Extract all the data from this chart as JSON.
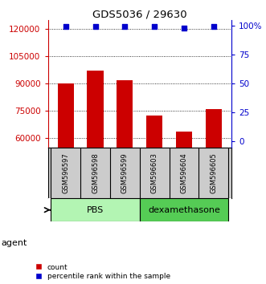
{
  "title": "GDS5036 / 29630",
  "samples": [
    "GSM596597",
    "GSM596598",
    "GSM596599",
    "GSM596603",
    "GSM596604",
    "GSM596605"
  ],
  "counts": [
    90000,
    97000,
    92000,
    72500,
    63500,
    76000
  ],
  "percentiles": [
    99,
    99,
    99,
    99,
    98,
    99
  ],
  "groups": [
    "PBS",
    "PBS",
    "PBS",
    "dexamethasone",
    "dexamethasone",
    "dexamethasone"
  ],
  "group_labels": [
    "PBS",
    "dexamethasone"
  ],
  "group_colors_pbs": "#b3f5b3",
  "group_colors_dex": "#55cc55",
  "bar_color": "#cc0000",
  "dot_color": "#0000cc",
  "ylim_left": [
    55000,
    125000
  ],
  "yticks_left": [
    60000,
    75000,
    90000,
    105000,
    120000
  ],
  "ylim_right": [
    -5,
    105
  ],
  "yticks_right": [
    0,
    25,
    50,
    75,
    100
  ],
  "ylabel_left_color": "#cc0000",
  "ylabel_right_color": "#0000cc",
  "agent_label": "agent",
  "legend_count_label": "count",
  "legend_percentile_label": "percentile rank within the sample",
  "background_color": "#ffffff",
  "sample_box_color": "#cccccc"
}
